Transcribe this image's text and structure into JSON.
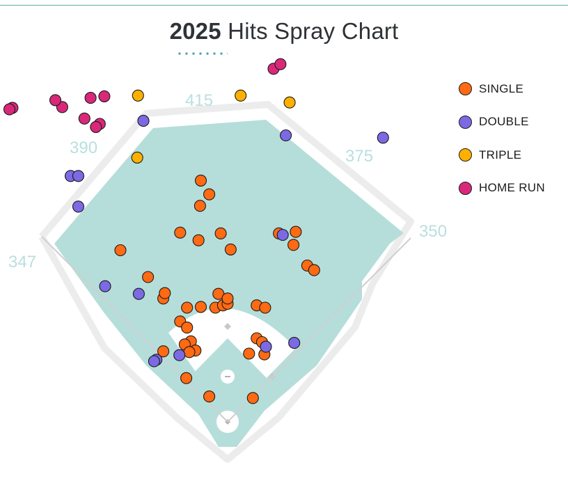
{
  "title": {
    "year": "2025",
    "text": "Hits Spray Chart"
  },
  "distances": {
    "left_line": "347",
    "left_center": "390",
    "center": "415",
    "right_center": "375",
    "right_line": "350"
  },
  "colors": {
    "outfield": "#b5dedb",
    "infield_dirt": "#ffffff",
    "foul_lines": "#cfcfcf",
    "accent": "#5ba9a8",
    "single": "#ff6a13",
    "double": "#7b6ae3",
    "triple": "#ffb000",
    "home_run": "#d9287a"
  },
  "legend": [
    {
      "key": "single",
      "label": "SINGLE",
      "color": "#ff6a13"
    },
    {
      "key": "double",
      "label": "DOUBLE",
      "color": "#7b6ae3"
    },
    {
      "key": "triple",
      "label": "TRIPLE",
      "color": "#ffb000"
    },
    {
      "key": "home_run",
      "label": "HOME RUN",
      "color": "#d9287a"
    }
  ],
  "chart_data": {
    "type": "scatter",
    "title": "2025 Hits Spray Chart",
    "coordinate_system": "field feet from home plate; x = toward right field (+), y = toward center field (+)",
    "series": [
      {
        "name": "SINGLE",
        "points": [
          [
            -35,
            316
          ],
          [
            -24,
            298
          ],
          [
            -36,
            283
          ],
          [
            -62,
            248
          ],
          [
            -9,
            247
          ],
          [
            -38,
            238
          ],
          [
            4,
            226
          ],
          [
            -140,
            225
          ],
          [
            -104,
            190
          ],
          [
            -84,
            162
          ],
          [
            -82,
            169
          ],
          [
            -53,
            150
          ],
          [
            -35,
            151
          ],
          [
            -16,
            150
          ],
          [
            -12,
            168
          ],
          [
            -6,
            153
          ],
          [
            0,
            155
          ],
          [
            0,
            162
          ],
          [
            -62,
            132
          ],
          [
            -53,
            124
          ],
          [
            -48,
            106
          ],
          [
            -56,
            102
          ],
          [
            -84,
            93
          ],
          [
            -42,
            94
          ],
          [
            -50,
            92
          ],
          [
            38,
            153
          ],
          [
            49,
            150
          ],
          [
            38,
            110
          ],
          [
            45,
            105
          ],
          [
            28,
            90
          ],
          [
            48,
            89
          ],
          [
            -24,
            34
          ],
          [
            33,
            32
          ],
          [
            -54,
            58
          ],
          [
            89,
            249
          ],
          [
            67,
            247
          ],
          [
            86,
            232
          ],
          [
            104,
            205
          ],
          [
            113,
            199
          ]
        ]
      },
      {
        "name": "DOUBLE",
        "points": [
          [
            -110,
            394
          ],
          [
            -205,
            322
          ],
          [
            -195,
            322
          ],
          [
            -195,
            282
          ],
          [
            -160,
            178
          ],
          [
            -116,
            168
          ],
          [
            -93,
            82
          ],
          [
            -96,
            80
          ],
          [
            -63,
            88
          ],
          [
            50,
            99
          ],
          [
            87,
            104
          ],
          [
            76,
            375
          ],
          [
            72,
            245
          ],
          [
            203,
            372
          ]
        ]
      },
      {
        "name": "TRIPLE",
        "points": [
          [
            -117,
            427
          ],
          [
            -118,
            346
          ],
          [
            17,
            427
          ],
          [
            81,
            418
          ]
        ]
      },
      {
        "name": "HOME RUN",
        "points": [
          [
            -167,
            390
          ],
          [
            -187,
            397
          ],
          [
            -172,
            386
          ],
          [
            -216,
            412
          ],
          [
            -225,
            421
          ],
          [
            -179,
            424
          ],
          [
            -161,
            426
          ],
          [
            -281,
            411
          ],
          [
            -285,
            409
          ],
          [
            60,
            462
          ],
          [
            69,
            468
          ]
        ]
      }
    ],
    "legend_position": "top-right",
    "outfield_fence_distances_ft": {
      "left_line": 347,
      "left_center": 390,
      "center": 415,
      "right_center": 375,
      "right_line": 350
    }
  }
}
